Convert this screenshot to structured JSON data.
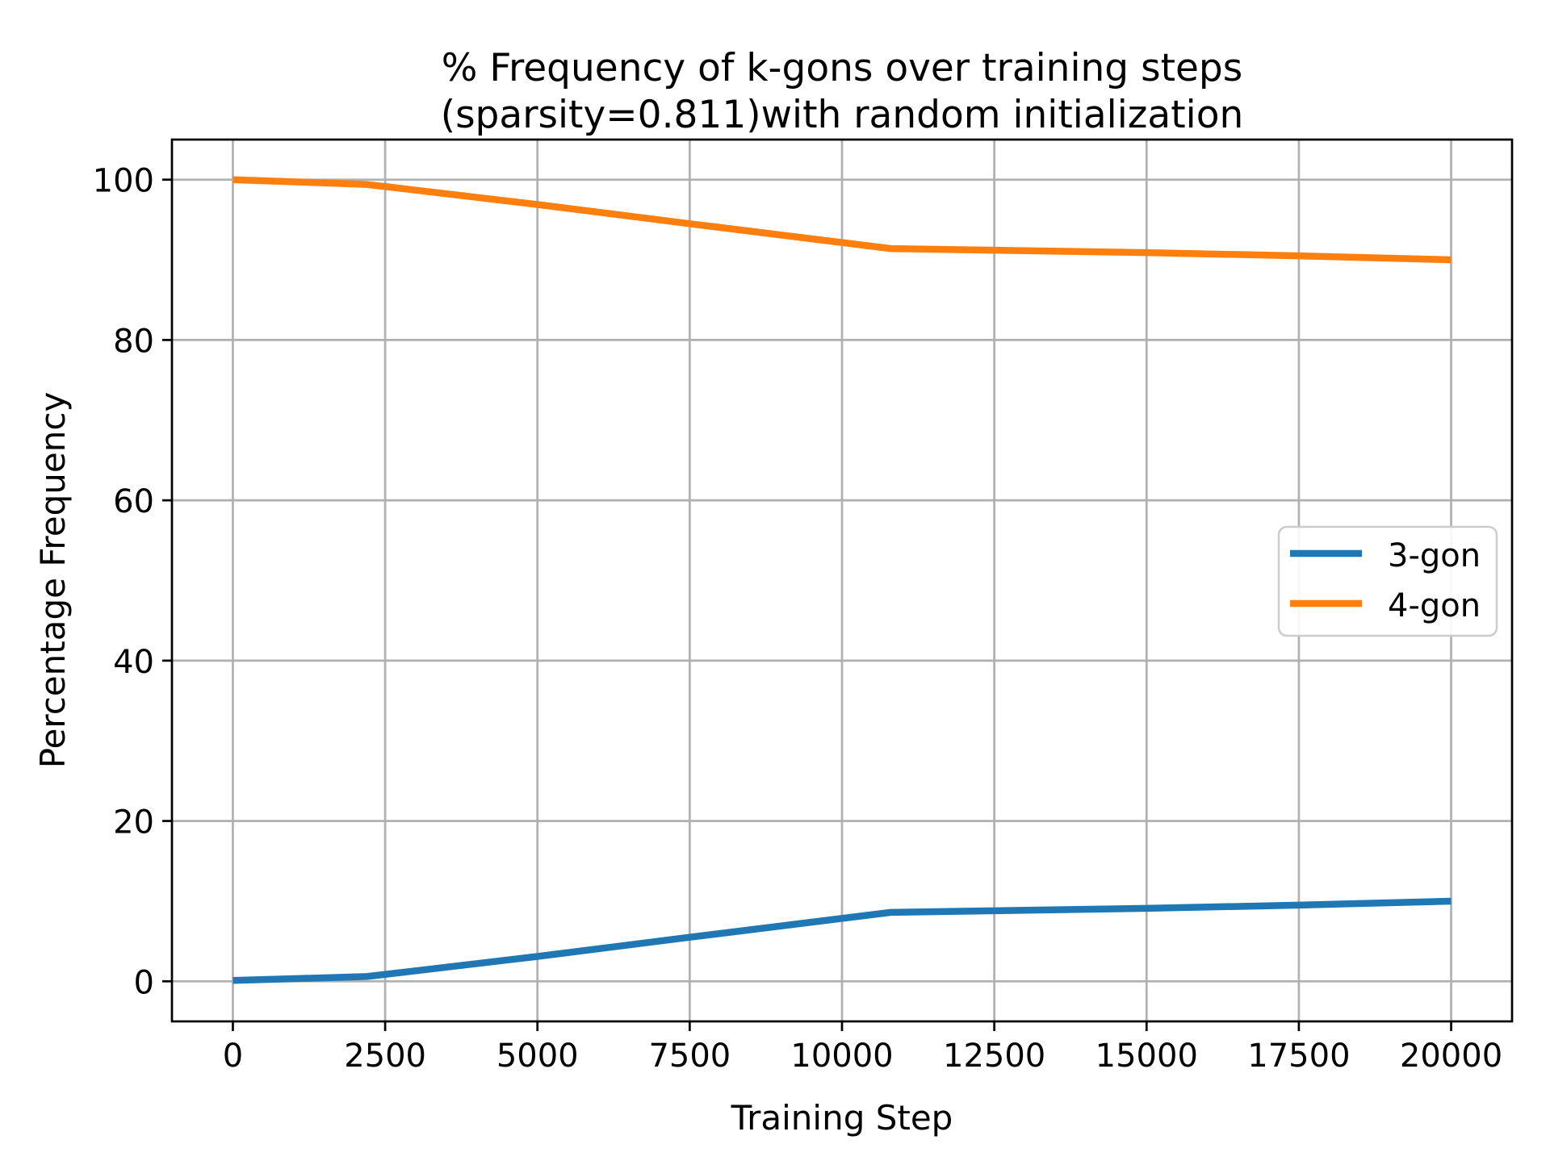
{
  "figure": {
    "title_line1": "% Frequency of k-gons over training steps",
    "title_line2": "(sparsity=0.811)with random initialization",
    "xlabel": "Training Step",
    "ylabel": "Percentage Frequency"
  },
  "legend": {
    "items": [
      {
        "label": "3-gon",
        "color": "#1f77b4"
      },
      {
        "label": "4-gon",
        "color": "#ff7f0e"
      }
    ]
  },
  "colors": {
    "grid": "#b0b0b0",
    "axis": "#000000",
    "background": "#ffffff",
    "legend_border": "#cccccc",
    "series_3gon": "#1f77b4",
    "series_4gon": "#ff7f0e"
  },
  "chart_data": {
    "type": "line",
    "title": "% Frequency of k-gons over training steps\n(sparsity=0.811)with random initialization",
    "xlabel": "Training Step",
    "ylabel": "Percentage Frequency",
    "xlim": [
      -1000,
      21000
    ],
    "ylim": [
      -5,
      105
    ],
    "xticks": [
      0,
      2500,
      5000,
      7500,
      10000,
      12500,
      15000,
      17500,
      20000
    ],
    "yticks": [
      0,
      20,
      40,
      60,
      80,
      100
    ],
    "grid": true,
    "legend_position": "center right",
    "line_width": 8.5,
    "series": [
      {
        "name": "3-gon",
        "color": "#1f77b4",
        "x": [
          0,
          2200,
          5000,
          7500,
          10800,
          12500,
          15000,
          17500,
          20000
        ],
        "y": [
          0.1,
          0.6,
          3.1,
          5.5,
          8.6,
          8.8,
          9.1,
          9.5,
          10.0
        ]
      },
      {
        "name": "4-gon",
        "color": "#ff7f0e",
        "x": [
          0,
          2200,
          5000,
          7500,
          10800,
          12500,
          15000,
          17500,
          20000
        ],
        "y": [
          100.0,
          99.4,
          96.9,
          94.5,
          91.4,
          91.2,
          90.9,
          90.5,
          90.0
        ]
      }
    ]
  }
}
